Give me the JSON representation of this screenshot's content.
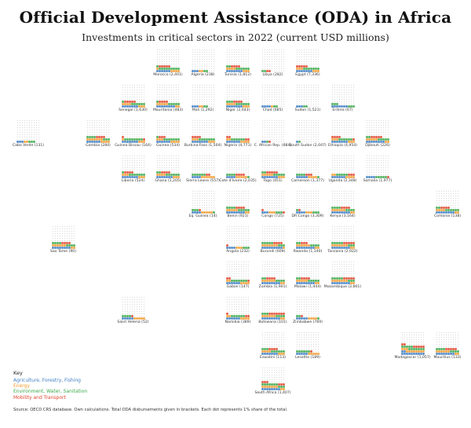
{
  "title": "Official Development Assistance (ODA) in Africa",
  "subtitle": "Investments in critical sectors in 2022 (current USD millions)",
  "key": {
    "title": "Key",
    "items": [
      {
        "label": "Agriculture, Forestry, Fishing",
        "color": "#3f7fc4"
      },
      {
        "label": "Energy",
        "color": "#f39a2c"
      },
      {
        "label": "Environment, Water, Sanitation",
        "color": "#3ca84a"
      },
      {
        "label": "Mobility and Transport",
        "color": "#e0452f"
      }
    ]
  },
  "source": "Source: OECD CRS database. Own calculations. Total ODA disbursements given in brackets. Each dot represents 1% share of the total.",
  "chart_data": {
    "type": "waffle-tile-map",
    "title": "Official Development Assistance (ODA) in Africa",
    "subtitle": "Investments in critical sectors in 2022 (current USD millions)",
    "dot_value": "1% of total ODA",
    "series_order": [
      "Agriculture, Forestry, Fishing",
      "Energy",
      "Environment, Water, Sanitation",
      "Mobility and Transport"
    ],
    "empty_color": "#dddddd",
    "countries": [
      {
        "name": "Morocco",
        "total": 2401,
        "col": 4,
        "row": 0,
        "shares": [
          6,
          5,
          10,
          5
        ]
      },
      {
        "name": "Algeria",
        "total": 238,
        "col": 5,
        "row": 0,
        "shares": [
          3,
          2,
          2,
          0
        ]
      },
      {
        "name": "Tunisia",
        "total": 1812,
        "col": 6,
        "row": 0,
        "shares": [
          7,
          7,
          8,
          4
        ]
      },
      {
        "name": "Libya",
        "total": 282,
        "col": 7,
        "row": 0,
        "shares": [
          0,
          0,
          2,
          2
        ]
      },
      {
        "name": "Egypt",
        "total": 7336,
        "col": 8,
        "row": 0,
        "shares": [
          7,
          6,
          7,
          5
        ]
      },
      {
        "name": "Senegal",
        "total": 1630,
        "col": 3,
        "row": 1,
        "shares": [
          7,
          7,
          7,
          5
        ]
      },
      {
        "name": "Mauritania",
        "total": 483,
        "col": 4,
        "row": 1,
        "shares": [
          8,
          7,
          6,
          4
        ]
      },
      {
        "name": "Mali",
        "total": 1292,
        "col": 5,
        "row": 1,
        "shares": [
          3,
          2,
          2,
          0
        ]
      },
      {
        "name": "Niger",
        "total": 2043,
        "col": 6,
        "row": 1,
        "shares": [
          7,
          7,
          9,
          4
        ]
      },
      {
        "name": "Chad",
        "total": 685,
        "col": 7,
        "row": 1,
        "shares": [
          4,
          1,
          2,
          0
        ]
      },
      {
        "name": "Sudan",
        "total": 1521,
        "col": 8,
        "row": 1,
        "shares": [
          3,
          0,
          2,
          0
        ]
      },
      {
        "name": "Eritrea",
        "total": 67,
        "col": 9,
        "row": 1,
        "shares": [
          7,
          0,
          6,
          0
        ]
      },
      {
        "name": "Cabo Verde",
        "total": 131,
        "col": 0,
        "row": 2,
        "shares": [
          3,
          2,
          3,
          0
        ]
      },
      {
        "name": "Gambia",
        "total": 284,
        "col": 2,
        "row": 2,
        "shares": [
          6,
          11,
          7,
          4
        ]
      },
      {
        "name": "Guinea Bissau",
        "total": 164,
        "col": 3,
        "row": 2,
        "shares": [
          7,
          4,
          8,
          2
        ]
      },
      {
        "name": "Guinea",
        "total": 534,
        "col": 4,
        "row": 2,
        "shares": [
          6,
          7,
          8,
          3
        ]
      },
      {
        "name": "Burkina Faso",
        "total": 1504,
        "col": 5,
        "row": 2,
        "shares": [
          7,
          6,
          7,
          4
        ]
      },
      {
        "name": "Nigeria",
        "total": 4771,
        "col": 6,
        "row": 2,
        "shares": [
          6,
          6,
          6,
          4
        ]
      },
      {
        "name": "C. African Rep.",
        "total": 884,
        "col": 7,
        "row": 2,
        "shares": [
          2,
          0,
          1,
          1
        ]
      },
      {
        "name": "South Sudan",
        "total": 2047,
        "col": 8,
        "row": 2,
        "shares": [
          1,
          0,
          1,
          0
        ]
      },
      {
        "name": "Ethiopia",
        "total": 4954,
        "col": 9,
        "row": 2,
        "shares": [
          7,
          6,
          6,
          5
        ]
      },
      {
        "name": "Djibouti",
        "total": 226,
        "col": 10,
        "row": 2,
        "shares": [
          8,
          7,
          7,
          5
        ]
      },
      {
        "name": "Liberia",
        "total": 524,
        "col": 3,
        "row": 3,
        "shares": [
          7,
          6,
          8,
          4
        ]
      },
      {
        "name": "Ghana",
        "total": 1205,
        "col": 4,
        "row": 3,
        "shares": [
          7,
          7,
          8,
          4
        ]
      },
      {
        "name": "Sierra Leone",
        "total": 557,
        "col": 5,
        "row": 3,
        "shares": [
          4,
          6,
          6,
          2
        ]
      },
      {
        "name": "Cote d'Ivoire",
        "total": 2035,
        "col": 6,
        "row": 3,
        "shares": [
          4,
          5,
          5,
          4
        ]
      },
      {
        "name": "Togo",
        "total": 451,
        "col": 7,
        "row": 3,
        "shares": [
          7,
          8,
          7,
          5
        ]
      },
      {
        "name": "Cameroon",
        "total": 1377,
        "col": 8,
        "row": 3,
        "shares": [
          5,
          4,
          5,
          3
        ]
      },
      {
        "name": "Uganda",
        "total": 2348,
        "col": 9,
        "row": 3,
        "shares": [
          6,
          6,
          5,
          3
        ]
      },
      {
        "name": "Somalia",
        "total": 1977,
        "col": 10,
        "row": 3,
        "shares": [
          4,
          0,
          5,
          1
        ]
      },
      {
        "name": "Eq. Guinea",
        "total": 14,
        "col": 5,
        "row": 4,
        "shares": [
          4,
          5,
          4,
          1
        ]
      },
      {
        "name": "Benin",
        "total": 921,
        "col": 6,
        "row": 4,
        "shares": [
          8,
          7,
          9,
          4
        ]
      },
      {
        "name": "Congo",
        "total": 725,
        "col": 7,
        "row": 4,
        "shares": [
          3,
          3,
          3,
          2
        ]
      },
      {
        "name": "DR Congo",
        "total": 3309,
        "col": 8,
        "row": 4,
        "shares": [
          4,
          3,
          4,
          1
        ]
      },
      {
        "name": "Kenya",
        "total": 3164,
        "col": 9,
        "row": 4,
        "shares": [
          8,
          8,
          8,
          4
        ]
      },
      {
        "name": "Comoros",
        "total": 138,
        "col": 12,
        "row": 4,
        "shares": [
          8,
          6,
          8,
          4
        ]
      },
      {
        "name": "Sao Tome",
        "total": 90,
        "col": 1,
        "row": 5,
        "shares": [
          8,
          8,
          8,
          4
        ]
      },
      {
        "name": "Angola",
        "total": 232,
        "col": 6,
        "row": 5,
        "shares": [
          4,
          3,
          3,
          1
        ]
      },
      {
        "name": "Burundi",
        "total": 609,
        "col": 7,
        "row": 5,
        "shares": [
          9,
          8,
          8,
          4
        ]
      },
      {
        "name": "Rwanda",
        "total": 1140,
        "col": 8,
        "row": 5,
        "shares": [
          8,
          8,
          6,
          3
        ]
      },
      {
        "name": "Tanzania",
        "total": 2922,
        "col": 9,
        "row": 5,
        "shares": [
          8,
          9,
          8,
          5
        ]
      },
      {
        "name": "Gabon",
        "total": 147,
        "col": 6,
        "row": 6,
        "shares": [
          6,
          6,
          7,
          3
        ]
      },
      {
        "name": "Zambia",
        "total": 1901,
        "col": 7,
        "row": 6,
        "shares": [
          8,
          8,
          6,
          4
        ]
      },
      {
        "name": "Malawi",
        "total": 1444,
        "col": 8,
        "row": 6,
        "shares": [
          8,
          7,
          7,
          4
        ]
      },
      {
        "name": "Mozambique",
        "total": 2801,
        "col": 9,
        "row": 6,
        "shares": [
          8,
          9,
          8,
          5
        ]
      },
      {
        "name": "Saint Helena",
        "total": 52,
        "col": 3,
        "row": 7,
        "shares": [
          5,
          5,
          4,
          1
        ]
      },
      {
        "name": "Namibia",
        "total": 389,
        "col": 6,
        "row": 7,
        "shares": [
          6,
          6,
          6,
          3
        ]
      },
      {
        "name": "Botswana",
        "total": 101,
        "col": 7,
        "row": 7,
        "shares": [
          8,
          8,
          7,
          7
        ]
      },
      {
        "name": "Zimbabwe",
        "total": 769,
        "col": 8,
        "row": 7,
        "shares": [
          5,
          4,
          3,
          1
        ]
      },
      {
        "name": "Eswatini",
        "total": 113,
        "col": 7,
        "row": 8,
        "shares": [
          7,
          7,
          9,
          4
        ]
      },
      {
        "name": "Lesotho",
        "total": 189,
        "col": 8,
        "row": 8,
        "shares": [
          5,
          5,
          6,
          1
        ]
      },
      {
        "name": "Madagascar",
        "total": 1057,
        "col": 11,
        "row": 8,
        "shares": [
          12,
          11,
          12,
          7
        ]
      },
      {
        "name": "Mauritius",
        "total": 133,
        "col": 12,
        "row": 8,
        "shares": [
          8,
          8,
          8,
          5
        ]
      },
      {
        "name": "South Africa",
        "total": 1407,
        "col": 7,
        "row": 9,
        "shares": [
          8,
          9,
          10,
          6
        ]
      }
    ]
  }
}
